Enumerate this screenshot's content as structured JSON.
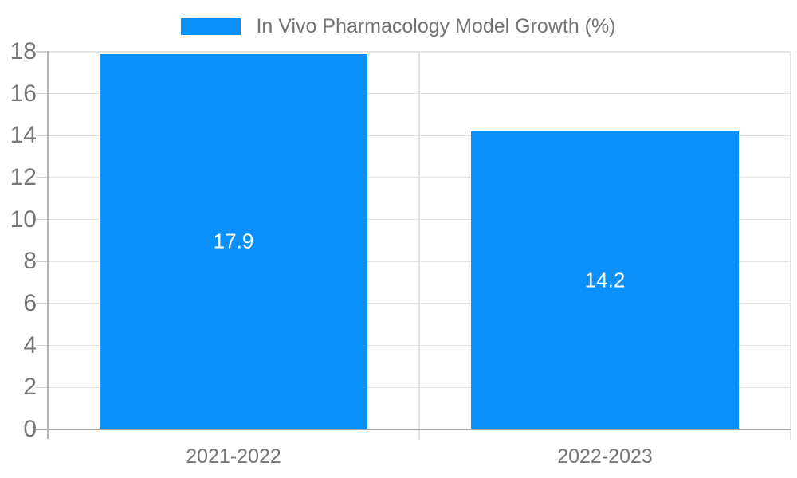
{
  "chart_data": {
    "type": "bar",
    "categories": [
      "2021-2022",
      "2022-2023"
    ],
    "series": [
      {
        "name": "In Vivo Pharmacology Model Growth (%)",
        "color": "#0a90f8",
        "values": [
          17.9,
          14.2
        ]
      }
    ],
    "value_labels": [
      "17.9",
      "14.2"
    ],
    "title": "",
    "xlabel": "",
    "ylabel": "",
    "ylim": [
      0,
      18
    ],
    "yticks": [
      0,
      2,
      4,
      6,
      8,
      10,
      12,
      14,
      16,
      18
    ],
    "grid": true,
    "legend_position": "top",
    "colors": {
      "bar": "#0a90f8",
      "background": "#ffffff",
      "gridline": "#e3e3e3",
      "x_axis_line": "#a6a6a6",
      "y_axis_line": "#b3b3b3",
      "tick": "#cfcfcf",
      "axis_text": "#757575",
      "legend_text": "#737373",
      "value_text": "#ffffff"
    }
  }
}
